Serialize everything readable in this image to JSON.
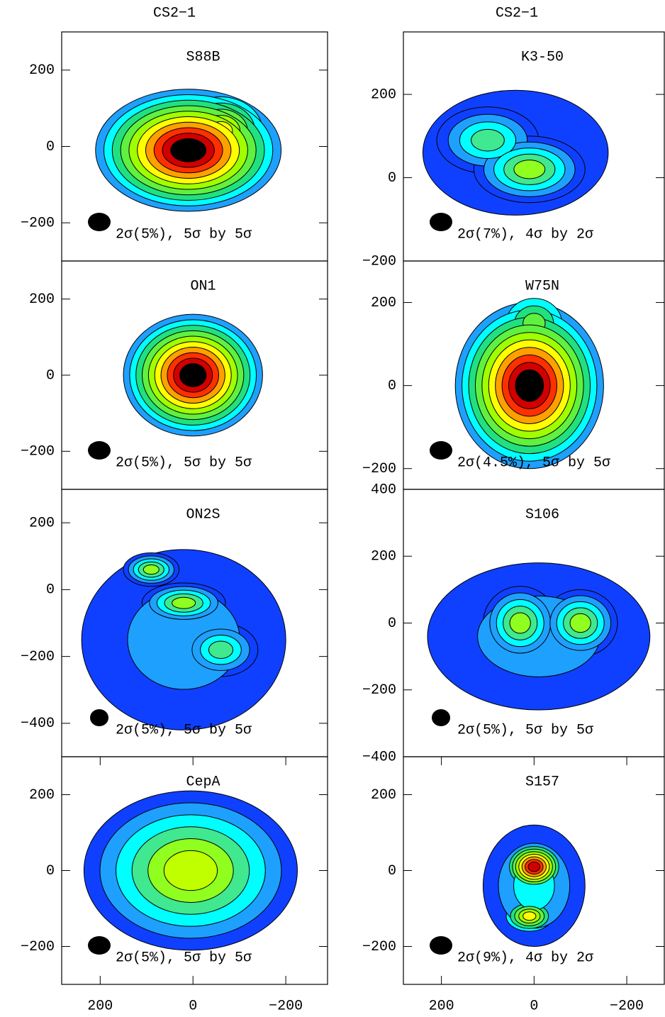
{
  "column_titles": [
    "CS2−1",
    "CS2−1"
  ],
  "chart_data": [
    {
      "type": "contour",
      "title": "S88B",
      "annotation": "2σ(5%), 5σ by 5σ",
      "xlim": [
        283,
        -290
      ],
      "ylim": [
        -300,
        300
      ],
      "yticks": [
        200,
        0,
        {
          "value": -200,
          "label": "−200"
        }
      ]
    },
    {
      "type": "contour",
      "title": "K3-50",
      "annotation": "2σ(7%), 4σ by 2σ",
      "xlim": [
        282,
        -281
      ],
      "ylim": [
        -200,
        350
      ],
      "yticks": [
        200,
        0,
        {
          "value": -200,
          "label": "−200"
        }
      ]
    },
    {
      "type": "contour",
      "title": "ON1",
      "annotation": "2σ(5%), 5σ by 5σ",
      "xlim": [
        283,
        -290
      ],
      "ylim": [
        -300,
        300
      ],
      "yticks": [
        200,
        0,
        {
          "value": -200,
          "label": "−200"
        }
      ]
    },
    {
      "type": "contour",
      "title": "W75N",
      "annotation": "2σ(4.5%), 5σ by 5σ",
      "xlim": [
        282,
        -281
      ],
      "ylim": [
        -250,
        300
      ],
      "yticks": [
        200,
        0,
        {
          "value": -200,
          "label": "−200"
        }
      ]
    },
    {
      "type": "contour",
      "title": "ON2S",
      "annotation": "2σ(5%), 5σ by 5σ",
      "xlim": [
        283,
        -290
      ],
      "ylim": [
        -500,
        300
      ],
      "yticks": [
        200,
        0,
        {
          "value": -200,
          "label": "−200"
        },
        {
          "value": -400,
          "label": "−400"
        }
      ]
    },
    {
      "type": "contour",
      "title": "S106",
      "annotation": "2σ(5%), 5σ by 5σ",
      "xlim": [
        282,
        -281
      ],
      "ylim": [
        -400,
        400
      ],
      "yticks": [
        400,
        200,
        0,
        {
          "value": -200,
          "label": "−200"
        },
        {
          "value": -400,
          "label": "−400"
        }
      ]
    },
    {
      "type": "contour",
      "title": "CepA",
      "annotation": "2σ(5%), 5σ by 5σ",
      "xlim": [
        283,
        -290
      ],
      "ylim": [
        -300,
        300
      ],
      "yticks": [
        200,
        0,
        {
          "value": -200,
          "label": "−200"
        }
      ],
      "xticks": [
        200,
        0,
        {
          "value": -200,
          "label": "−200"
        }
      ]
    },
    {
      "type": "contour",
      "title": "S157",
      "annotation": "2σ(9%), 4σ by 2σ",
      "xlim": [
        282,
        -281
      ],
      "ylim": [
        -300,
        300
      ],
      "yticks": [
        200,
        0,
        {
          "value": -200,
          "label": "−200"
        }
      ],
      "xticks": [
        200,
        0,
        {
          "value": -200,
          "label": "−200"
        }
      ]
    }
  ]
}
